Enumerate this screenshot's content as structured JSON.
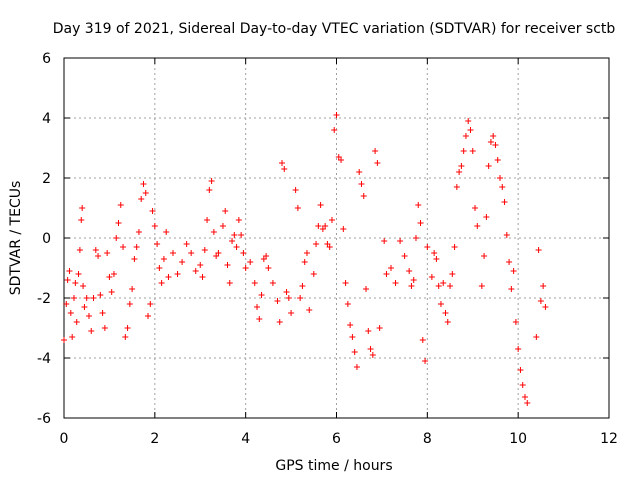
{
  "chart_data": {
    "type": "scatter",
    "title": "Day 319 of 2021, Sidereal Day-to-day VTEC variation (SDTVAR) for receiver sctb",
    "xlabel": "GPS time / hours",
    "ylabel": "SDTVAR / TECUs",
    "xlim": [
      0,
      12
    ],
    "ylim": [
      -6,
      6
    ],
    "x_ticks": [
      0,
      2,
      4,
      6,
      8,
      10,
      12
    ],
    "y_ticks": [
      -6,
      -4,
      -2,
      0,
      2,
      4,
      6
    ],
    "grid": true,
    "marker": "+",
    "marker_color": "#ff0000",
    "series": [
      {
        "name": "sctb",
        "points": [
          [
            0.0,
            -3.4
          ],
          [
            0.05,
            -2.2
          ],
          [
            0.08,
            -1.4
          ],
          [
            0.12,
            -1.1
          ],
          [
            0.15,
            -2.5
          ],
          [
            0.18,
            -3.3
          ],
          [
            0.22,
            -2.0
          ],
          [
            0.25,
            -1.5
          ],
          [
            0.28,
            -2.8
          ],
          [
            0.32,
            -1.2
          ],
          [
            0.35,
            -0.4
          ],
          [
            0.38,
            0.6
          ],
          [
            0.4,
            1.0
          ],
          [
            0.42,
            -1.6
          ],
          [
            0.45,
            -2.3
          ],
          [
            0.5,
            -2.0
          ],
          [
            0.55,
            -2.6
          ],
          [
            0.6,
            -3.1
          ],
          [
            0.65,
            -2.0
          ],
          [
            0.7,
            -0.4
          ],
          [
            0.75,
            -0.6
          ],
          [
            0.8,
            -1.9
          ],
          [
            0.85,
            -2.5
          ],
          [
            0.9,
            -3.0
          ],
          [
            0.95,
            -0.5
          ],
          [
            1.0,
            -1.3
          ],
          [
            1.05,
            -1.8
          ],
          [
            1.1,
            -1.2
          ],
          [
            1.15,
            0.0
          ],
          [
            1.2,
            0.5
          ],
          [
            1.25,
            1.1
          ],
          [
            1.3,
            -0.3
          ],
          [
            1.35,
            -3.3
          ],
          [
            1.4,
            -3.0
          ],
          [
            1.45,
            -2.2
          ],
          [
            1.5,
            -1.7
          ],
          [
            1.55,
            -0.7
          ],
          [
            1.6,
            -0.3
          ],
          [
            1.65,
            0.2
          ],
          [
            1.7,
            1.3
          ],
          [
            1.75,
            1.8
          ],
          [
            1.8,
            1.5
          ],
          [
            1.85,
            -2.6
          ],
          [
            1.9,
            -2.2
          ],
          [
            1.95,
            0.9
          ],
          [
            2.0,
            0.4
          ],
          [
            2.05,
            -0.2
          ],
          [
            2.1,
            -1.0
          ],
          [
            2.15,
            -1.5
          ],
          [
            2.2,
            -0.7
          ],
          [
            2.25,
            0.2
          ],
          [
            2.3,
            -1.3
          ],
          [
            2.4,
            -0.5
          ],
          [
            2.5,
            -1.2
          ],
          [
            2.6,
            -0.8
          ],
          [
            2.7,
            -0.2
          ],
          [
            2.8,
            -0.5
          ],
          [
            2.9,
            -1.1
          ],
          [
            3.0,
            -0.9
          ],
          [
            3.05,
            -1.3
          ],
          [
            3.1,
            -0.4
          ],
          [
            3.15,
            0.6
          ],
          [
            3.2,
            1.6
          ],
          [
            3.25,
            1.9
          ],
          [
            3.3,
            0.2
          ],
          [
            3.35,
            -0.6
          ],
          [
            3.4,
            -0.5
          ],
          [
            3.5,
            0.4
          ],
          [
            3.55,
            0.9
          ],
          [
            3.6,
            -0.9
          ],
          [
            3.65,
            -1.5
          ],
          [
            3.7,
            -0.1
          ],
          [
            3.75,
            0.1
          ],
          [
            3.8,
            -0.3
          ],
          [
            3.85,
            0.6
          ],
          [
            3.9,
            0.1
          ],
          [
            3.95,
            -0.5
          ],
          [
            4.0,
            -1.0
          ],
          [
            4.1,
            -0.8
          ],
          [
            4.2,
            -1.5
          ],
          [
            4.25,
            -2.3
          ],
          [
            4.3,
            -2.7
          ],
          [
            4.35,
            -1.9
          ],
          [
            4.4,
            -0.7
          ],
          [
            4.45,
            -0.6
          ],
          [
            4.5,
            -1.0
          ],
          [
            4.6,
            -1.5
          ],
          [
            4.7,
            -2.1
          ],
          [
            4.75,
            -2.8
          ],
          [
            4.8,
            2.5
          ],
          [
            4.85,
            2.3
          ],
          [
            4.9,
            -1.8
          ],
          [
            4.95,
            -2.0
          ],
          [
            5.0,
            -2.5
          ],
          [
            5.1,
            1.6
          ],
          [
            5.15,
            1.0
          ],
          [
            5.2,
            -2.0
          ],
          [
            5.25,
            -1.6
          ],
          [
            5.3,
            -0.8
          ],
          [
            5.35,
            -0.5
          ],
          [
            5.4,
            -2.4
          ],
          [
            5.5,
            -1.2
          ],
          [
            5.55,
            -0.2
          ],
          [
            5.6,
            0.4
          ],
          [
            5.65,
            1.1
          ],
          [
            5.7,
            0.3
          ],
          [
            5.75,
            0.4
          ],
          [
            5.8,
            -0.2
          ],
          [
            5.85,
            -0.3
          ],
          [
            5.9,
            0.6
          ],
          [
            5.95,
            3.6
          ],
          [
            6.0,
            4.1
          ],
          [
            6.05,
            2.7
          ],
          [
            6.1,
            2.6
          ],
          [
            6.15,
            0.3
          ],
          [
            6.2,
            -1.5
          ],
          [
            6.25,
            -2.2
          ],
          [
            6.3,
            -2.9
          ],
          [
            6.35,
            -3.3
          ],
          [
            6.4,
            -3.8
          ],
          [
            6.45,
            -4.3
          ],
          [
            6.5,
            2.2
          ],
          [
            6.55,
            1.8
          ],
          [
            6.6,
            1.4
          ],
          [
            6.65,
            -1.7
          ],
          [
            6.7,
            -3.1
          ],
          [
            6.75,
            -3.7
          ],
          [
            6.8,
            -3.9
          ],
          [
            6.85,
            2.9
          ],
          [
            6.9,
            2.5
          ],
          [
            6.95,
            -3.0
          ],
          [
            7.05,
            -0.1
          ],
          [
            7.1,
            -1.2
          ],
          [
            7.2,
            -1.0
          ],
          [
            7.3,
            -1.5
          ],
          [
            7.4,
            -0.1
          ],
          [
            7.5,
            -0.6
          ],
          [
            7.6,
            -1.1
          ],
          [
            7.65,
            -1.6
          ],
          [
            7.7,
            -1.4
          ],
          [
            7.75,
            0.0
          ],
          [
            7.8,
            1.1
          ],
          [
            7.85,
            0.5
          ],
          [
            7.9,
            -3.4
          ],
          [
            7.95,
            -4.1
          ],
          [
            8.0,
            -0.3
          ],
          [
            8.1,
            -1.3
          ],
          [
            8.15,
            -0.5
          ],
          [
            8.2,
            -0.7
          ],
          [
            8.25,
            -1.6
          ],
          [
            8.3,
            -2.2
          ],
          [
            8.35,
            -1.5
          ],
          [
            8.4,
            -2.5
          ],
          [
            8.45,
            -2.8
          ],
          [
            8.5,
            -1.6
          ],
          [
            8.55,
            -1.2
          ],
          [
            8.6,
            -0.3
          ],
          [
            8.65,
            1.7
          ],
          [
            8.7,
            2.2
          ],
          [
            8.75,
            2.4
          ],
          [
            8.8,
            2.9
          ],
          [
            8.85,
            3.4
          ],
          [
            8.9,
            3.9
          ],
          [
            8.95,
            3.6
          ],
          [
            9.0,
            2.9
          ],
          [
            9.05,
            1.0
          ],
          [
            9.1,
            0.4
          ],
          [
            9.2,
            -1.6
          ],
          [
            9.25,
            -0.6
          ],
          [
            9.3,
            0.7
          ],
          [
            9.35,
            2.4
          ],
          [
            9.4,
            3.2
          ],
          [
            9.45,
            3.4
          ],
          [
            9.5,
            3.1
          ],
          [
            9.55,
            2.6
          ],
          [
            9.6,
            2.0
          ],
          [
            9.65,
            1.7
          ],
          [
            9.7,
            1.2
          ],
          [
            9.75,
            0.1
          ],
          [
            9.8,
            -0.8
          ],
          [
            9.85,
            -1.7
          ],
          [
            9.9,
            -1.1
          ],
          [
            9.95,
            -2.8
          ],
          [
            10.0,
            -3.7
          ],
          [
            10.05,
            -4.4
          ],
          [
            10.1,
            -4.9
          ],
          [
            10.15,
            -5.3
          ],
          [
            10.2,
            -5.5
          ],
          [
            10.4,
            -3.3
          ],
          [
            10.45,
            -0.4
          ],
          [
            10.5,
            -2.1
          ],
          [
            10.55,
            -1.6
          ],
          [
            10.6,
            -2.3
          ]
        ]
      }
    ]
  }
}
